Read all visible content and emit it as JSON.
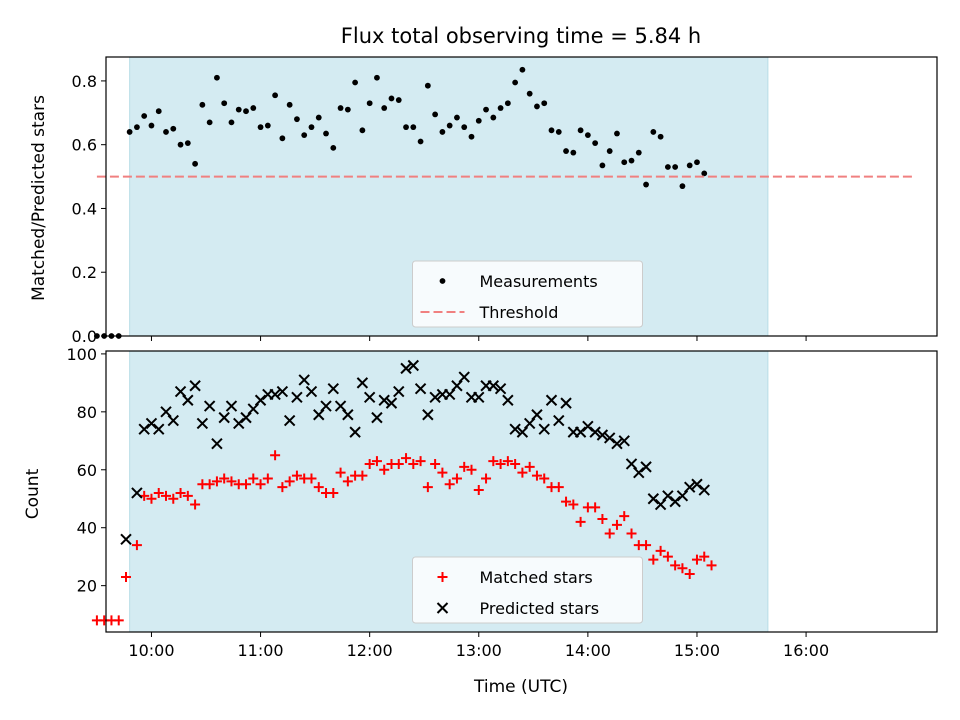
{
  "chart_data": [
    {
      "type": "scatter",
      "title": "Flux total observing time = 5.84 h",
      "xlabel": "",
      "ylabel": "Matched/Predicted stars",
      "ylim": [
        0,
        0.875
      ],
      "yticks": [
        "0.0",
        "0.2",
        "0.4",
        "0.6",
        "0.8"
      ],
      "xlim": [
        "09:35",
        "17:12"
      ],
      "grid": false,
      "legend": "lower center",
      "observing_window": {
        "start": "09:48",
        "end": "15:39",
        "color": "#d4ebf2"
      },
      "series": [
        {
          "name": "Measurements",
          "marker": "dot",
          "color": "#000000",
          "points": [
            [
              "09:30",
              0.0
            ],
            [
              "09:34",
              0.0
            ],
            [
              "09:38",
              0.0
            ],
            [
              "09:42",
              0.0
            ],
            [
              "09:48",
              0.64
            ],
            [
              "09:52",
              0.655
            ],
            [
              "09:56",
              0.69
            ],
            [
              "10:00",
              0.66
            ],
            [
              "10:04",
              0.705
            ],
            [
              "10:08",
              0.64
            ],
            [
              "10:12",
              0.65
            ],
            [
              "10:16",
              0.6
            ],
            [
              "10:20",
              0.605
            ],
            [
              "10:24",
              0.54
            ],
            [
              "10:28",
              0.725
            ],
            [
              "10:32",
              0.67
            ],
            [
              "10:36",
              0.81
            ],
            [
              "10:40",
              0.73
            ],
            [
              "10:44",
              0.67
            ],
            [
              "10:48",
              0.71
            ],
            [
              "10:52",
              0.705
            ],
            [
              "10:56",
              0.715
            ],
            [
              "11:00",
              0.655
            ],
            [
              "11:04",
              0.66
            ],
            [
              "11:08",
              0.755
            ],
            [
              "11:12",
              0.62
            ],
            [
              "11:16",
              0.725
            ],
            [
              "11:20",
              0.68
            ],
            [
              "11:24",
              0.63
            ],
            [
              "11:28",
              0.655
            ],
            [
              "11:32",
              0.685
            ],
            [
              "11:36",
              0.635
            ],
            [
              "11:40",
              0.59
            ],
            [
              "11:44",
              0.715
            ],
            [
              "11:48",
              0.71
            ],
            [
              "11:52",
              0.795
            ],
            [
              "11:56",
              0.645
            ],
            [
              "12:00",
              0.73
            ],
            [
              "12:04",
              0.81
            ],
            [
              "12:08",
              0.715
            ],
            [
              "12:12",
              0.745
            ],
            [
              "12:16",
              0.74
            ],
            [
              "12:20",
              0.655
            ],
            [
              "12:24",
              0.655
            ],
            [
              "12:28",
              0.61
            ],
            [
              "12:32",
              0.785
            ],
            [
              "12:36",
              0.695
            ],
            [
              "12:40",
              0.64
            ],
            [
              "12:44",
              0.66
            ],
            [
              "12:48",
              0.685
            ],
            [
              "12:52",
              0.655
            ],
            [
              "12:56",
              0.625
            ],
            [
              "13:00",
              0.675
            ],
            [
              "13:04",
              0.71
            ],
            [
              "13:08",
              0.685
            ],
            [
              "13:12",
              0.715
            ],
            [
              "13:16",
              0.73
            ],
            [
              "13:20",
              0.795
            ],
            [
              "13:24",
              0.835
            ],
            [
              "13:28",
              0.76
            ],
            [
              "13:32",
              0.72
            ],
            [
              "13:36",
              0.73
            ],
            [
              "13:40",
              0.645
            ],
            [
              "13:44",
              0.64
            ],
            [
              "13:48",
              0.58
            ],
            [
              "13:52",
              0.575
            ],
            [
              "13:56",
              0.645
            ],
            [
              "14:00",
              0.63
            ],
            [
              "14:04",
              0.605
            ],
            [
              "14:08",
              0.535
            ],
            [
              "14:12",
              0.58
            ],
            [
              "14:16",
              0.635
            ],
            [
              "14:20",
              0.545
            ],
            [
              "14:24",
              0.55
            ],
            [
              "14:28",
              0.575
            ],
            [
              "14:32",
              0.475
            ],
            [
              "14:36",
              0.64
            ],
            [
              "14:40",
              0.625
            ],
            [
              "14:44",
              0.53
            ],
            [
              "14:48",
              0.53
            ],
            [
              "14:52",
              0.47
            ],
            [
              "14:56",
              0.535
            ],
            [
              "15:00",
              0.545
            ],
            [
              "15:04",
              0.51
            ]
          ]
        },
        {
          "name": "Threshold",
          "marker": "dashed-line",
          "color": "#f08080",
          "x": [
            "09:30",
            "17:00"
          ],
          "y": [
            0.5,
            0.5
          ]
        }
      ]
    },
    {
      "type": "scatter",
      "title": "",
      "xlabel": "Time (UTC)",
      "ylabel": "Count",
      "ylim": [
        4,
        101
      ],
      "yticks": [
        "20",
        "40",
        "60",
        "80",
        "100"
      ],
      "xlim": [
        "09:35",
        "17:12"
      ],
      "xticks": [
        "10:00",
        "11:00",
        "12:00",
        "13:00",
        "14:00",
        "15:00",
        "16:00"
      ],
      "grid": false,
      "legend": "lower center",
      "observing_window": {
        "start": "09:48",
        "end": "15:39",
        "color": "#d4ebf2"
      },
      "series": [
        {
          "name": "Matched stars",
          "marker": "plus",
          "color": "#ff0000",
          "points": [
            [
              "09:30",
              8
            ],
            [
              "09:34",
              8
            ],
            [
              "09:38",
              8
            ],
            [
              "09:42",
              8
            ],
            [
              "09:46",
              23
            ],
            [
              "09:52",
              34
            ],
            [
              "09:56",
              51
            ],
            [
              "10:00",
              50
            ],
            [
              "10:04",
              52
            ],
            [
              "10:08",
              51
            ],
            [
              "10:12",
              50
            ],
            [
              "10:16",
              52
            ],
            [
              "10:20",
              51
            ],
            [
              "10:24",
              48
            ],
            [
              "10:28",
              55
            ],
            [
              "10:32",
              55
            ],
            [
              "10:36",
              56
            ],
            [
              "10:40",
              57
            ],
            [
              "10:44",
              56
            ],
            [
              "10:48",
              55
            ],
            [
              "10:52",
              55
            ],
            [
              "10:56",
              57
            ],
            [
              "11:00",
              55
            ],
            [
              "11:04",
              57
            ],
            [
              "11:08",
              65
            ],
            [
              "11:12",
              54
            ],
            [
              "11:16",
              56
            ],
            [
              "11:20",
              58
            ],
            [
              "11:24",
              57
            ],
            [
              "11:28",
              57
            ],
            [
              "11:32",
              54
            ],
            [
              "11:36",
              52
            ],
            [
              "11:40",
              52
            ],
            [
              "11:44",
              59
            ],
            [
              "11:48",
              56
            ],
            [
              "11:52",
              58
            ],
            [
              "11:56",
              58
            ],
            [
              "12:00",
              62
            ],
            [
              "12:04",
              63
            ],
            [
              "12:08",
              60
            ],
            [
              "12:12",
              62
            ],
            [
              "12:16",
              62
            ],
            [
              "12:20",
              64
            ],
            [
              "12:24",
              62
            ],
            [
              "12:28",
              63
            ],
            [
              "12:32",
              54
            ],
            [
              "12:36",
              62
            ],
            [
              "12:40",
              59
            ],
            [
              "12:44",
              55
            ],
            [
              "12:48",
              57
            ],
            [
              "12:52",
              61
            ],
            [
              "12:56",
              60
            ],
            [
              "13:00",
              53
            ],
            [
              "13:04",
              57
            ],
            [
              "13:08",
              63
            ],
            [
              "13:12",
              62
            ],
            [
              "13:16",
              63
            ],
            [
              "13:20",
              62
            ],
            [
              "13:24",
              59
            ],
            [
              "13:28",
              61
            ],
            [
              "13:32",
              58
            ],
            [
              "13:36",
              57
            ],
            [
              "13:40",
              54
            ],
            [
              "13:44",
              54
            ],
            [
              "13:48",
              49
            ],
            [
              "13:52",
              48
            ],
            [
              "13:56",
              42
            ],
            [
              "14:00",
              47
            ],
            [
              "14:04",
              47
            ],
            [
              "14:08",
              43
            ],
            [
              "14:12",
              38
            ],
            [
              "14:16",
              41
            ],
            [
              "14:20",
              44
            ],
            [
              "14:24",
              38
            ],
            [
              "14:28",
              34
            ],
            [
              "14:32",
              34
            ],
            [
              "14:36",
              29
            ],
            [
              "14:40",
              32
            ],
            [
              "14:44",
              30
            ],
            [
              "14:48",
              27
            ],
            [
              "14:52",
              26
            ],
            [
              "14:56",
              24
            ],
            [
              "15:00",
              29
            ],
            [
              "15:04",
              30
            ],
            [
              "15:08",
              27
            ]
          ]
        },
        {
          "name": "Predicted stars",
          "marker": "cross",
          "color": "#000000",
          "points": [
            [
              "09:46",
              36
            ],
            [
              "09:52",
              52
            ],
            [
              "09:56",
              74
            ],
            [
              "10:00",
              76
            ],
            [
              "10:04",
              74
            ],
            [
              "10:08",
              80
            ],
            [
              "10:12",
              77
            ],
            [
              "10:16",
              87
            ],
            [
              "10:20",
              84
            ],
            [
              "10:24",
              89
            ],
            [
              "10:28",
              76
            ],
            [
              "10:32",
              82
            ],
            [
              "10:36",
              69
            ],
            [
              "10:40",
              78
            ],
            [
              "10:44",
              82
            ],
            [
              "10:48",
              76
            ],
            [
              "10:52",
              78
            ],
            [
              "10:56",
              81
            ],
            [
              "11:00",
              84
            ],
            [
              "11:04",
              86
            ],
            [
              "11:08",
              86
            ],
            [
              "11:12",
              87
            ],
            [
              "11:16",
              77
            ],
            [
              "11:20",
              85
            ],
            [
              "11:24",
              91
            ],
            [
              "11:28",
              87
            ],
            [
              "11:32",
              79
            ],
            [
              "11:36",
              82
            ],
            [
              "11:40",
              88
            ],
            [
              "11:44",
              82
            ],
            [
              "11:48",
              79
            ],
            [
              "11:52",
              73
            ],
            [
              "11:56",
              90
            ],
            [
              "12:00",
              85
            ],
            [
              "12:04",
              78
            ],
            [
              "12:08",
              84
            ],
            [
              "12:12",
              83
            ],
            [
              "12:16",
              87
            ],
            [
              "12:20",
              95
            ],
            [
              "12:24",
              96
            ],
            [
              "12:28",
              88
            ],
            [
              "12:32",
              79
            ],
            [
              "12:36",
              85
            ],
            [
              "12:40",
              86
            ],
            [
              "12:44",
              86
            ],
            [
              "12:48",
              89
            ],
            [
              "12:52",
              92
            ],
            [
              "12:56",
              85
            ],
            [
              "13:00",
              85
            ],
            [
              "13:04",
              89
            ],
            [
              "13:08",
              89
            ],
            [
              "13:12",
              88
            ],
            [
              "13:16",
              84
            ],
            [
              "13:20",
              74
            ],
            [
              "13:24",
              73
            ],
            [
              "13:28",
              76
            ],
            [
              "13:32",
              79
            ],
            [
              "13:36",
              74
            ],
            [
              "13:40",
              84
            ],
            [
              "13:44",
              77
            ],
            [
              "13:48",
              83
            ],
            [
              "13:52",
              73
            ],
            [
              "13:56",
              73
            ],
            [
              "14:00",
              75
            ],
            [
              "14:04",
              73
            ],
            [
              "14:08",
              72
            ],
            [
              "14:12",
              71
            ],
            [
              "14:16",
              69
            ],
            [
              "14:20",
              70
            ],
            [
              "14:24",
              62
            ],
            [
              "14:28",
              59
            ],
            [
              "14:32",
              61
            ],
            [
              "14:36",
              50
            ],
            [
              "14:40",
              48
            ],
            [
              "14:44",
              51
            ],
            [
              "14:48",
              49
            ],
            [
              "14:52",
              51
            ],
            [
              "14:56",
              54
            ],
            [
              "15:00",
              55
            ],
            [
              "15:04",
              53
            ]
          ]
        }
      ]
    }
  ]
}
